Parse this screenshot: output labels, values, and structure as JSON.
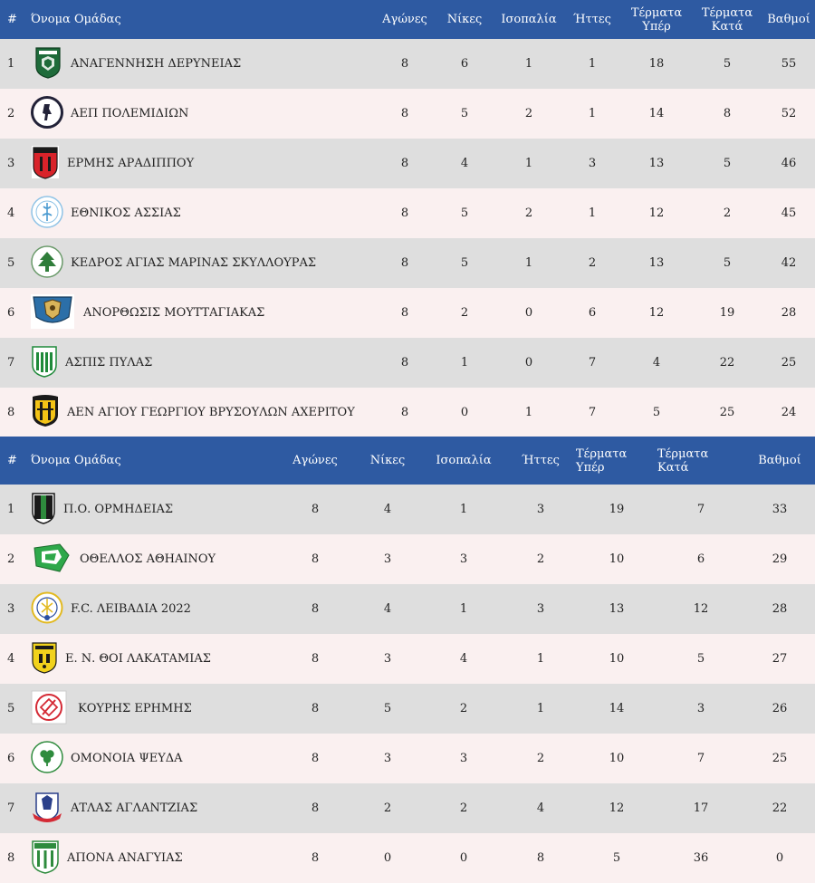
{
  "tables": [
    {
      "headers": {
        "pos": "#",
        "team": "Όνομα Ομάδας",
        "played": "Αγώνες",
        "wins": "Νίκες",
        "draws": "Ισοπαλία",
        "losses": "Ήττες",
        "gf_line1": "Τέρματα",
        "gf_line2": "Υπέρ",
        "ga_line1": "Τέρματα",
        "ga_line2": "Κατά",
        "points": "Βαθμοί"
      },
      "rows": [
        {
          "pos": "1",
          "team": "ΑΝΑΓΕΝΝΗΣΗ ΔΕΡΥΝΕΙΑΣ",
          "played": "8",
          "wins": "6",
          "draws": "1",
          "losses": "1",
          "gf": "18",
          "ga": "5",
          "points": "55",
          "logo": "anagennisi-crest-icon"
        },
        {
          "pos": "2",
          "team": "ΑΕΠ ΠΟΛΕΜΙΔΙΩΝ",
          "played": "8",
          "wins": "5",
          "draws": "2",
          "losses": "1",
          "gf": "14",
          "ga": "8",
          "points": "52",
          "logo": "aep-crest-icon"
        },
        {
          "pos": "3",
          "team": "ΕΡΜΗΣ ΑΡΑΔΙΠΠΟΥ",
          "played": "8",
          "wins": "4",
          "draws": "1",
          "losses": "3",
          "gf": "13",
          "ga": "5",
          "points": "46",
          "logo": "ermis-crest-icon"
        },
        {
          "pos": "4",
          "team": "ΕΘΝΙΚΟΣ ΑΣΣΙΑΣ",
          "played": "8",
          "wins": "5",
          "draws": "2",
          "losses": "1",
          "gf": "12",
          "ga": "2",
          "points": "45",
          "logo": "ethnikos-crest-icon"
        },
        {
          "pos": "5",
          "team": "ΚΕΔΡΟΣ ΑΓΙΑΣ ΜΑΡΙΝΑΣ ΣΚΥΛΛΟΥΡΑΣ",
          "played": "8",
          "wins": "5",
          "draws": "1",
          "losses": "2",
          "gf": "13",
          "ga": "5",
          "points": "42",
          "logo": "kedros-crest-icon"
        },
        {
          "pos": "6",
          "team": "ΑΝΟΡΘΩΣΙΣ ΜΟΥΤΤΑΓΙΑΚΑΣ",
          "played": "8",
          "wins": "2",
          "draws": "0",
          "losses": "6",
          "gf": "12",
          "ga": "19",
          "points": "28",
          "logo": "anorthosis-crest-icon"
        },
        {
          "pos": "7",
          "team": "ΑΣΠΙΣ ΠΥΛΑΣ",
          "played": "8",
          "wins": "1",
          "draws": "0",
          "losses": "7",
          "gf": "4",
          "ga": "22",
          "points": "25",
          "logo": "aspis-crest-icon"
        },
        {
          "pos": "8",
          "team": "ΑΕΝ ΑΓΙΟΥ ΓΕΩΡΓΙΟΥ ΒΡΥΣΟΥΛΩΝ ΑΧΕΡΙΤΟΥ",
          "played": "8",
          "wins": "0",
          "draws": "1",
          "losses": "7",
          "gf": "5",
          "ga": "25",
          "points": "24",
          "logo": "aen-crest-icon"
        }
      ]
    },
    {
      "headers": {
        "pos": "#",
        "team": "Όνομα Ομάδας",
        "played": "Αγώνες",
        "wins": "Νίκες",
        "draws": "Ισοπαλία",
        "losses": "Ήττες",
        "gf_line1": "Τέρματα",
        "gf_line2": "Υπέρ",
        "ga_line1": "Τέρματα",
        "ga_line2": "Κατά",
        "points": "Βαθμοί"
      },
      "rows": [
        {
          "pos": "1",
          "team": "Π.Ο. ΟΡΜΗΔΕΙΑΣ",
          "played": "8",
          "wins": "4",
          "draws": "1",
          "losses": "3",
          "gf": "19",
          "ga": "7",
          "points": "33",
          "logo": "ormideia-crest-icon"
        },
        {
          "pos": "2",
          "team": "ΟΘΕΛΛΟΣ ΑΘΗΑΙΝΟΥ",
          "played": "8",
          "wins": "3",
          "draws": "3",
          "losses": "2",
          "gf": "10",
          "ga": "6",
          "points": "29",
          "logo": "othellos-crest-icon"
        },
        {
          "pos": "3",
          "team": "F.C. ΛΕΙΒΑΔΙΑ 2022",
          "played": "8",
          "wins": "4",
          "draws": "1",
          "losses": "3",
          "gf": "13",
          "ga": "12",
          "points": "28",
          "logo": "leivadia-crest-icon"
        },
        {
          "pos": "4",
          "team": "Ε. Ν. ΘΟΙ ΛΑΚΑΤΑΜΙΑΣ",
          "played": "8",
          "wins": "3",
          "draws": "4",
          "losses": "1",
          "gf": "10",
          "ga": "5",
          "points": "27",
          "logo": "thoi-crest-icon"
        },
        {
          "pos": "5",
          "team": "ΚΟΥΡΗΣ ΕΡΗΜΗΣ",
          "played": "8",
          "wins": "5",
          "draws": "2",
          "losses": "1",
          "gf": "14",
          "ga": "3",
          "points": "26",
          "logo": "kouris-crest-icon"
        },
        {
          "pos": "6",
          "team": "ΟΜΟΝΟΙΑ ΨΕΥΔΑ",
          "played": "8",
          "wins": "3",
          "draws": "3",
          "losses": "2",
          "gf": "10",
          "ga": "7",
          "points": "25",
          "logo": "omonoia-crest-icon"
        },
        {
          "pos": "7",
          "team": "ΑΤΛΑΣ ΑΓΛΑΝΤΖΙΑΣ",
          "played": "8",
          "wins": "2",
          "draws": "2",
          "losses": "4",
          "gf": "12",
          "ga": "17",
          "points": "22",
          "logo": "atlas-crest-icon"
        },
        {
          "pos": "8",
          "team": "ΑΠΟΝΑ ΑΝΑΓΥΙΑΣ",
          "played": "8",
          "wins": "0",
          "draws": "0",
          "losses": "8",
          "gf": "5",
          "ga": "36",
          "points": "0",
          "logo": "apona-crest-icon"
        }
      ]
    }
  ],
  "colors": {
    "header_bg": "#2e5aa2",
    "row_odd": "#dedede",
    "row_even": "#faf0f0"
  }
}
